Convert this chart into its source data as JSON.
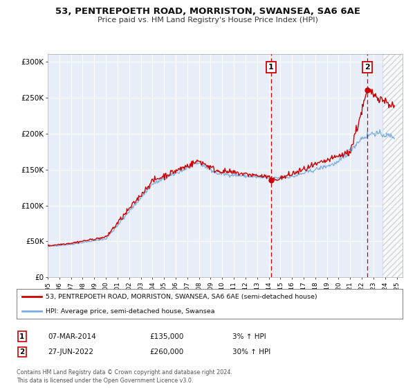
{
  "title": "53, PENTREPOETH ROAD, MORRISTON, SWANSEA, SA6 6AE",
  "subtitle": "Price paid vs. HM Land Registry's House Price Index (HPI)",
  "legend_entry1": "53, PENTREPOETH ROAD, MORRISTON, SWANSEA, SA6 6AE (semi-detached house)",
  "legend_entry2": "HPI: Average price, semi-detached house, Swansea",
  "annotation1_date": "07-MAR-2014",
  "annotation1_price": "£135,000",
  "annotation1_hpi": "3% ↑ HPI",
  "annotation1_year": 2014.18,
  "annotation1_value": 135000,
  "annotation2_date": "27-JUN-2022",
  "annotation2_price": "£260,000",
  "annotation2_hpi": "30% ↑ HPI",
  "annotation2_year": 2022.49,
  "annotation2_value": 260000,
  "red_line_color": "#cc0000",
  "blue_line_color": "#7aade0",
  "background_color": "#ffffff",
  "plot_bg_color": "#e8eef8",
  "grid_color": "#ffffff",
  "ylim": [
    0,
    310000
  ],
  "xlim_start": 1995.0,
  "xlim_end": 2025.5,
  "footer_text": "Contains HM Land Registry data © Crown copyright and database right 2024.\nThis data is licensed under the Open Government Licence v3.0.",
  "ytick_labels": [
    "£0",
    "£50K",
    "£100K",
    "£150K",
    "£200K",
    "£250K",
    "£300K"
  ],
  "ytick_values": [
    0,
    50000,
    100000,
    150000,
    200000,
    250000,
    300000
  ]
}
